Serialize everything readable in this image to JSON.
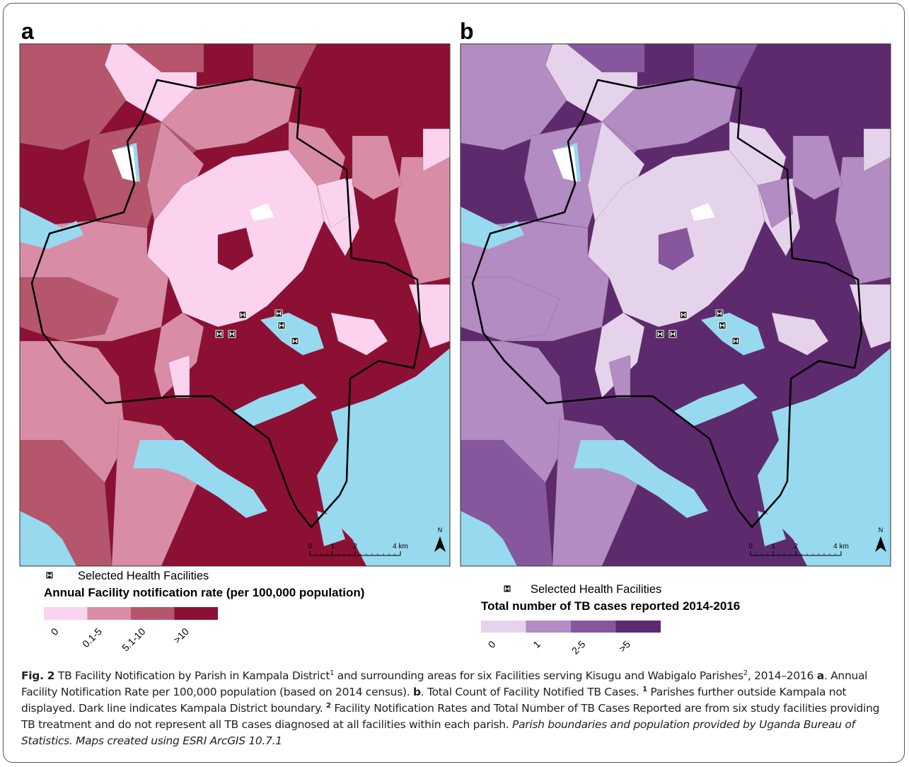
{
  "panels": [
    {
      "label": "a",
      "facility_label": "Selected Health Facilities",
      "legend_title": "Annual Facility notification rate (per 100,000 population)",
      "classes": [
        {
          "label": "0",
          "color": "#fbd3ef"
        },
        {
          "label": "0.1-5",
          "color": "#d98ca6"
        },
        {
          "label": "5.1-10",
          "color": "#b5566c"
        },
        {
          "label": ">10",
          "color": "#8c1033"
        }
      ],
      "scale_bar": {
        "ticks": [
          0,
          1,
          2,
          {
            "value": 4,
            "label": "4 km"
          }
        ]
      },
      "north": "N"
    },
    {
      "label": "b",
      "facility_label": "Selected Health Facilities",
      "legend_title": "Total number of TB cases reported 2014-2016",
      "classes": [
        {
          "label": "0",
          "color": "#e5d3ec"
        },
        {
          "label": "1",
          "color": "#b28cc2"
        },
        {
          "label": "2-5",
          "color": "#86579d"
        },
        {
          "label": ">5",
          "color": "#5e2a6e"
        }
      ],
      "scale_bar": {
        "ticks": [
          0,
          1,
          2,
          {
            "value": 4,
            "label": "4 km"
          }
        ]
      },
      "north": "N"
    }
  ],
  "water_color": "#97d9ef",
  "caption": [
    {
      "text": "Fig. 2",
      "style": "bold"
    },
    {
      "text": " TB Facility Notification by Parish in Kampala District"
    },
    {
      "text": "1",
      "style": "sup"
    },
    {
      "text": " and surrounding areas for six Facilities serving Kisugu and Wabigalo Parishes"
    },
    {
      "text": "2",
      "style": "sup"
    },
    {
      "text": ", 2014–2016 "
    },
    {
      "text": "a",
      "style": "bold"
    },
    {
      "text": ". Annual Facility Notification Rate per 100,000 population (based on 2014 census). "
    },
    {
      "text": "b",
      "style": "bold"
    },
    {
      "text": ". Total Count of Facility Notified TB Cases. "
    },
    {
      "text": "1",
      "style": "sup-bold"
    },
    {
      "text": " Parishes further outside Kampala not displayed. Dark line indicates Kampala District boundary. "
    },
    {
      "text": "2",
      "style": "sup-bold"
    },
    {
      "text": " Facility Notification Rates and Total Number of TB Cases Reported are from six study facilities providing TB treatment and do not represent all TB cases diagnosed at all facilities within each parish. "
    },
    {
      "text": "Parish boundaries and population provided by Uganda Bureau of Statistics. Maps created using ESRI ArcGIS 10.7.1",
      "style": "italic"
    }
  ]
}
